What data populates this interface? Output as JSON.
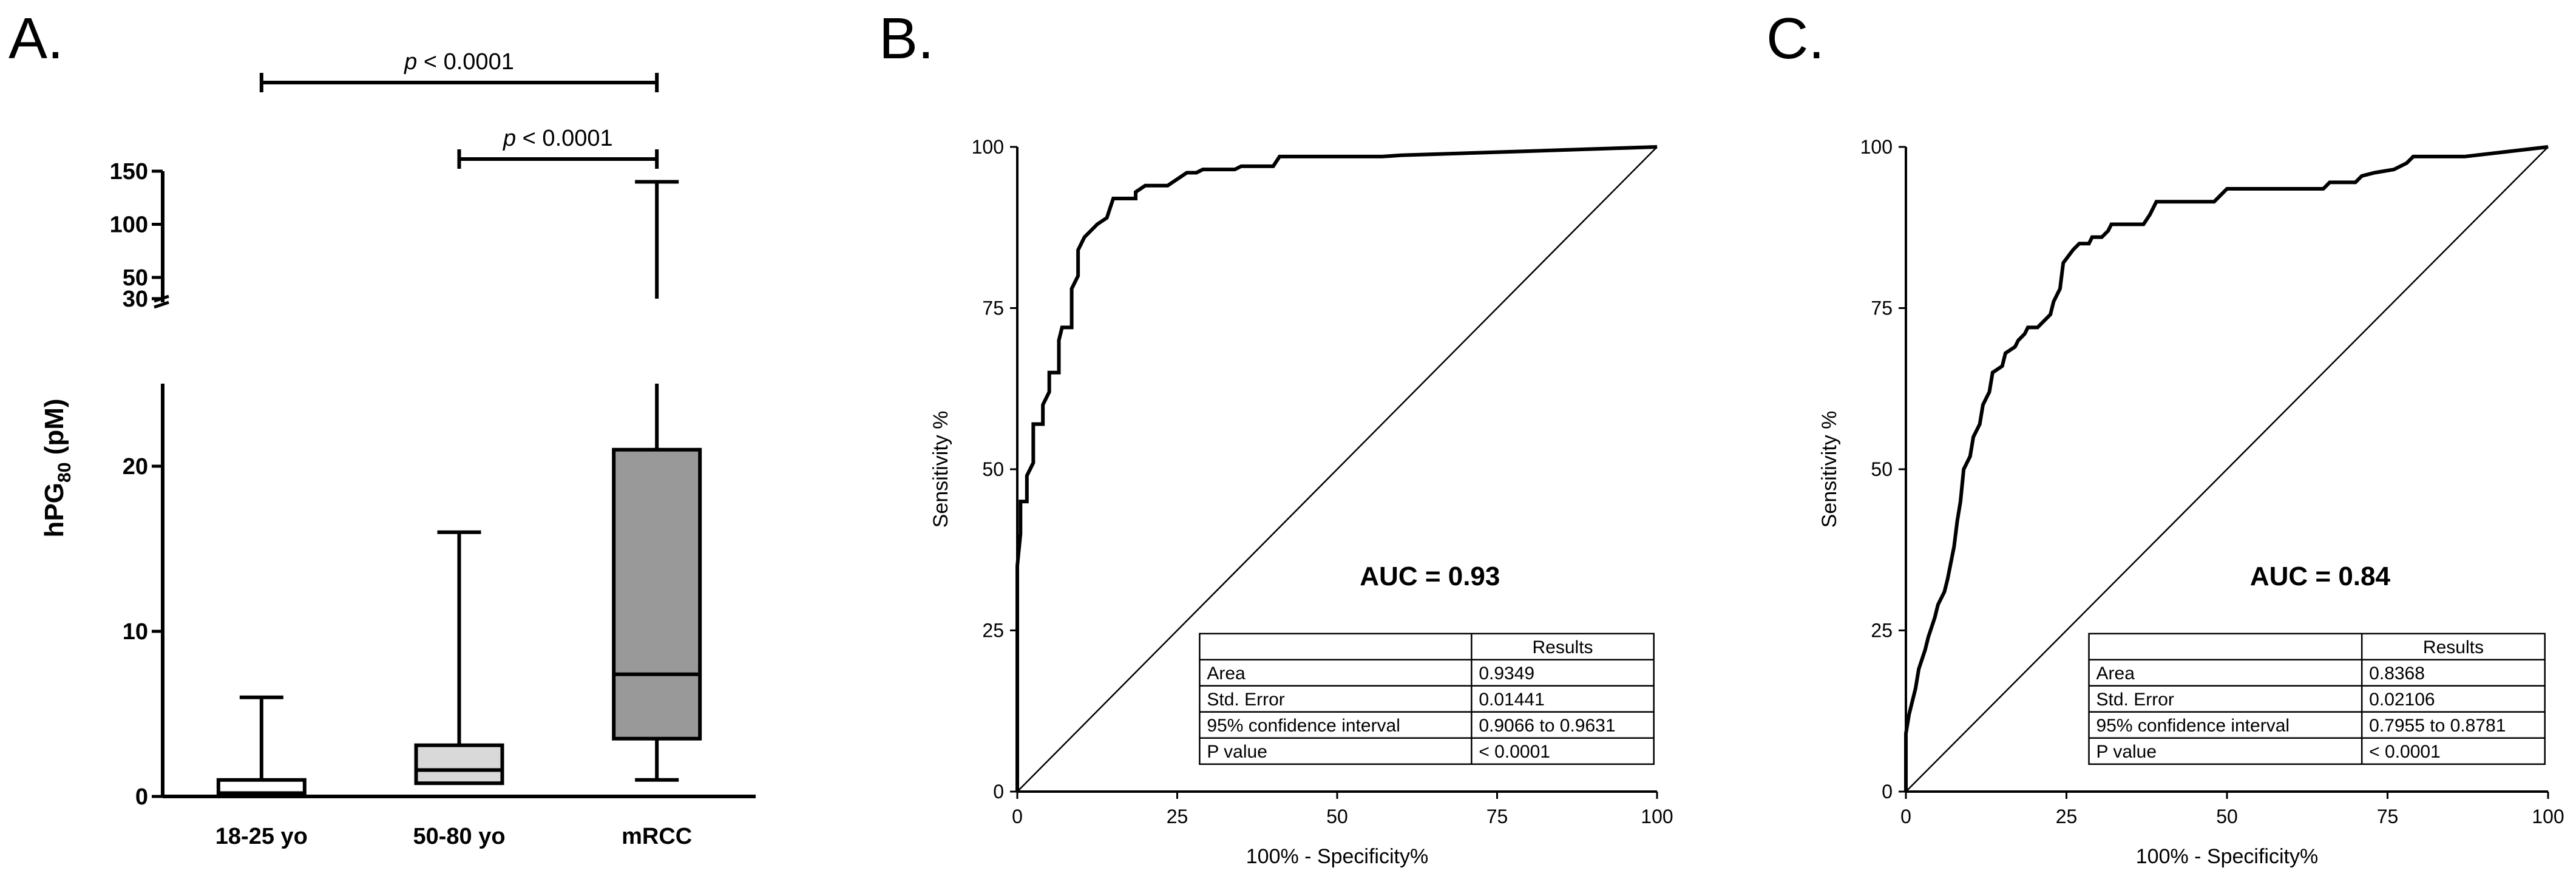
{
  "chart_data": [
    {
      "panel": "A.",
      "type": "box",
      "ylabel_main": "hPG",
      "ylabel_sub": "80",
      "ylabel_suffix": " (pM)",
      "categories": [
        "18-25 yo",
        "50-80 yo",
        "mRCC"
      ],
      "boxes": [
        {
          "min": 0,
          "q1": 0,
          "median": 0.2,
          "q3": 1.0,
          "max": 6,
          "color": "#ffffff"
        },
        {
          "min": 0.8,
          "q1": 0.8,
          "median": 1.6,
          "q3": 3.1,
          "max": 16,
          "color": "#d9d9d9"
        },
        {
          "min": 1.0,
          "q1": 3.5,
          "median": 7.4,
          "q3": 21,
          "max": 140,
          "color": "#999999"
        }
      ],
      "y_lower_ticks": [
        "0",
        "10",
        "20"
      ],
      "y_lower_tick_values": [
        0,
        10,
        20
      ],
      "y_upper_ticks": [
        "30",
        "50",
        "100",
        "150"
      ],
      "y_upper_tick_values": [
        30,
        50,
        100,
        150
      ],
      "axis_break": [
        25,
        30
      ],
      "significance": [
        {
          "from": 0,
          "to": 2,
          "italic": "p",
          "text": " < 0.0001"
        },
        {
          "from": 1,
          "to": 2,
          "italic": "p",
          "text": " < 0.0001"
        }
      ]
    },
    {
      "panel": "B.",
      "type": "line",
      "xlabel": "100% - Specificity%",
      "ylabel": "Sensitivity %",
      "xlim": [
        0,
        100
      ],
      "ylim": [
        0,
        100
      ],
      "x_ticks": [
        "0",
        "25",
        "50",
        "75",
        "100"
      ],
      "y_ticks": [
        "0",
        "25",
        "50",
        "75",
        "100"
      ],
      "auc_label": "AUC = 0.93",
      "series": [
        {
          "values": [
            [
              0,
              0
            ],
            [
              0,
              35
            ],
            [
              0.5,
              40
            ],
            [
              0.5,
              45
            ],
            [
              1.5,
              45
            ],
            [
              1.5,
              49
            ],
            [
              2.5,
              51
            ],
            [
              2.5,
              57
            ],
            [
              4,
              57
            ],
            [
              4,
              60
            ],
            [
              5,
              62
            ],
            [
              5,
              65
            ],
            [
              6.5,
              65
            ],
            [
              6.5,
              70
            ],
            [
              7,
              72
            ],
            [
              8.5,
              72
            ],
            [
              8.5,
              78
            ],
            [
              9.5,
              80
            ],
            [
              9.5,
              84
            ],
            [
              10.5,
              86
            ],
            [
              11.5,
              87
            ],
            [
              12.5,
              88
            ],
            [
              14,
              89
            ],
            [
              15,
              92
            ],
            [
              18.5,
              92
            ],
            [
              18.5,
              93
            ],
            [
              20,
              94
            ],
            [
              23.5,
              94
            ],
            [
              25,
              95
            ],
            [
              26.5,
              96
            ],
            [
              28,
              96
            ],
            [
              29,
              96.5
            ],
            [
              34,
              96.5
            ],
            [
              35,
              97
            ],
            [
              40,
              97
            ],
            [
              41,
              98.5
            ],
            [
              57,
              98.5
            ],
            [
              60,
              98.7
            ],
            [
              100,
              100
            ]
          ]
        },
        {
          "values": [
            [
              0,
              0
            ],
            [
              100,
              100
            ]
          ]
        }
      ],
      "table": {
        "header": [
          "",
          "Results"
        ],
        "rows": [
          [
            "Area",
            "0.9349"
          ],
          [
            "Std. Error",
            "0.01441"
          ],
          [
            "95% confidence interval",
            "0.9066 to 0.9631"
          ],
          [
            "P value",
            "< 0.0001"
          ]
        ]
      }
    },
    {
      "panel": "C.",
      "type": "line",
      "xlabel": "100% - Specificity%",
      "ylabel": "Sensitivity %",
      "xlim": [
        0,
        100
      ],
      "ylim": [
        0,
        100
      ],
      "x_ticks": [
        "0",
        "25",
        "50",
        "75",
        "100"
      ],
      "y_ticks": [
        "0",
        "25",
        "50",
        "75",
        "100"
      ],
      "auc_label": "AUC = 0.84",
      "series": [
        {
          "values": [
            [
              0,
              0
            ],
            [
              0,
              9
            ],
            [
              0.5,
              12
            ],
            [
              1,
              14
            ],
            [
              1.5,
              16
            ],
            [
              2,
              19
            ],
            [
              3,
              22
            ],
            [
              3.5,
              24
            ],
            [
              4.5,
              27
            ],
            [
              5,
              29
            ],
            [
              6,
              31
            ],
            [
              6.5,
              33
            ],
            [
              7.5,
              38
            ],
            [
              8,
              42
            ],
            [
              8.5,
              45
            ],
            [
              9,
              50
            ],
            [
              10,
              52
            ],
            [
              10.5,
              55
            ],
            [
              11.5,
              57
            ],
            [
              12,
              60
            ],
            [
              13,
              62
            ],
            [
              13.5,
              65
            ],
            [
              15,
              66
            ],
            [
              15.5,
              68
            ],
            [
              17,
              69
            ],
            [
              17.5,
              70
            ],
            [
              18.5,
              71
            ],
            [
              19,
              72
            ],
            [
              20.5,
              72
            ],
            [
              21.5,
              73
            ],
            [
              22.5,
              74
            ],
            [
              23,
              76
            ],
            [
              24,
              78
            ],
            [
              24.5,
              82
            ],
            [
              26,
              84
            ],
            [
              27,
              85
            ],
            [
              28.5,
              85
            ],
            [
              29,
              86
            ],
            [
              30.5,
              86
            ],
            [
              31.5,
              87
            ],
            [
              32,
              88
            ],
            [
              37,
              88
            ],
            [
              38,
              89.5
            ],
            [
              39,
              91.5
            ],
            [
              48,
              91.5
            ],
            [
              50,
              93.5
            ],
            [
              65,
              93.5
            ],
            [
              66,
              94.5
            ],
            [
              70,
              94.5
            ],
            [
              71,
              95.5
            ],
            [
              73,
              96
            ],
            [
              76,
              96.5
            ],
            [
              78,
              97.5
            ],
            [
              79,
              98.5
            ],
            [
              87,
              98.5
            ],
            [
              100,
              100
            ]
          ]
        },
        {
          "values": [
            [
              0,
              0
            ],
            [
              100,
              100
            ]
          ]
        }
      ],
      "table": {
        "header": [
          "",
          "Results"
        ],
        "rows": [
          [
            "Area",
            "0.8368"
          ],
          [
            "Std. Error",
            "0.02106"
          ],
          [
            "95% confidence interval",
            "0.7955 to 0.8781"
          ],
          [
            "P value",
            "< 0.0001"
          ]
        ]
      }
    }
  ]
}
